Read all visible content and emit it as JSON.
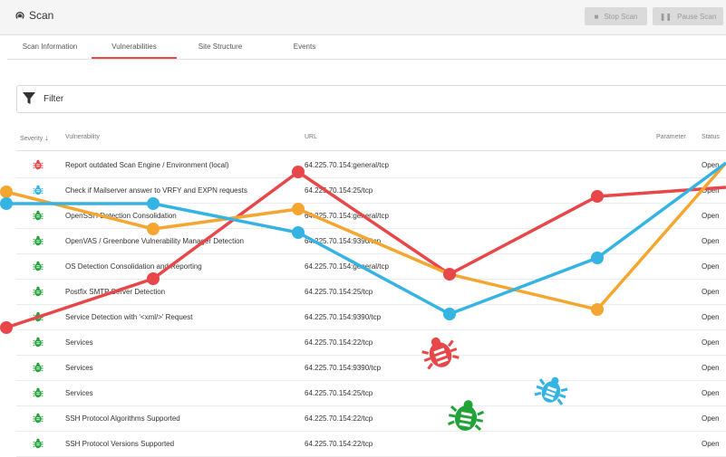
{
  "app": {
    "title": "Scan"
  },
  "toolbar": {
    "stop_label": "Stop Scan",
    "pause_label": "Pause Scan"
  },
  "tabs": [
    {
      "label": "Scan Information",
      "active": false
    },
    {
      "label": "Vulnerabilities",
      "active": true
    },
    {
      "label": "Site Structure",
      "active": false
    },
    {
      "label": "Events",
      "active": false
    }
  ],
  "filter": {
    "label": "Filter"
  },
  "table": {
    "headers": {
      "severity": "Severity",
      "vulnerability": "Vulnerability",
      "url": "URL",
      "parameter": "Parameter",
      "status": "Status"
    },
    "rows": [
      {
        "severity": "high",
        "vulnerability": "Report outdated Scan Engine / Environment (local)",
        "url": "64.225.70.154:general/tcp",
        "status": "Open"
      },
      {
        "severity": "medium",
        "vulnerability": "Check if Mailserver answer to VRFY and EXPN requests",
        "url": "64.225.70.154:25/tcp",
        "status": "Open"
      },
      {
        "severity": "info",
        "vulnerability": "OpenSSH Detection Consolidation",
        "url": "64.225.70.154:general/tcp",
        "status": "Open"
      },
      {
        "severity": "info",
        "vulnerability": "OpenVAS / Greenbone Vulnerability Manager Detection",
        "url": "64.225.70.154:9390/tcp",
        "status": "Open"
      },
      {
        "severity": "info",
        "vulnerability": "OS Detection Consolidation and Reporting",
        "url": "64.225.70.154:general/tcp",
        "status": "Open"
      },
      {
        "severity": "info",
        "vulnerability": "Postfix SMTP Server Detection",
        "url": "64.225.70.154:25/tcp",
        "status": "Open"
      },
      {
        "severity": "info",
        "vulnerability": "Service Detection with '<xml/>' Request",
        "url": "64.225.70.154:9390/tcp",
        "status": "Open"
      },
      {
        "severity": "info",
        "vulnerability": "Services",
        "url": "64.225.70.154:22/tcp",
        "status": "Open"
      },
      {
        "severity": "info",
        "vulnerability": "Services",
        "url": "64.225.70.154:9390/tcp",
        "status": "Open"
      },
      {
        "severity": "info",
        "vulnerability": "Services",
        "url": "64.225.70.154:25/tcp",
        "status": "Open"
      },
      {
        "severity": "info",
        "vulnerability": "SSH Protocol Algorithms Supported",
        "url": "64.225.70.154:22/tcp",
        "status": "Open"
      },
      {
        "severity": "info",
        "vulnerability": "SSH Protocol Versions Supported",
        "url": "64.225.70.154:22/tcp",
        "status": "Open"
      }
    ]
  },
  "colors": {
    "high": "#e8474a",
    "medium": "#35b4e4",
    "info": "#22a33a",
    "orange": "#f5a630",
    "accent": "#e8474a"
  },
  "icons": {
    "app": "radar-icon",
    "stop": "stop-icon",
    "pause": "pause-icon",
    "filter": "filter-icon",
    "severity": "bug-icon",
    "sort": "arrow-down-icon"
  }
}
